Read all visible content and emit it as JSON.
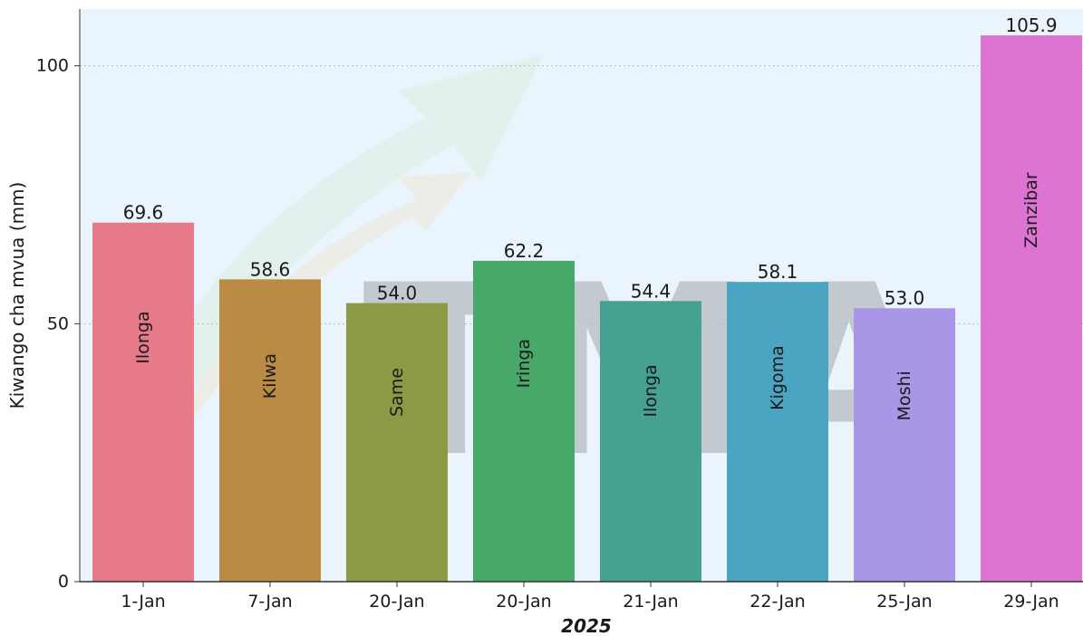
{
  "chart_data": {
    "type": "bar",
    "categories": [
      "1-Jan",
      "7-Jan",
      "20-Jan",
      "20-Jan",
      "21-Jan",
      "22-Jan",
      "25-Jan",
      "29-Jan"
    ],
    "values": [
      69.6,
      58.6,
      54.0,
      62.2,
      54.4,
      58.1,
      53.0,
      105.9
    ],
    "value_labels": [
      "69.6",
      "58.6",
      "54.0",
      "62.2",
      "54.4",
      "58.1",
      "53.0",
      "105.9"
    ],
    "stations": [
      "Ilonga",
      "Kilwa",
      "Same",
      "Iringa",
      "Ilonga",
      "Kigoma",
      "Moshi",
      "Zanzibar"
    ],
    "bar_colors": [
      "#e67a89",
      "#bb8a45",
      "#8c9a43",
      "#47a86a",
      "#46a190",
      "#4ba4c2",
      "#a996e6",
      "#dd73d2"
    ],
    "xlabel": "2025",
    "ylabel": "Kiwango cha mvua (mm)",
    "yticks": [
      0,
      50,
      100
    ],
    "ylim": [
      0,
      111
    ],
    "grid": "horizontal dotted",
    "background_color": "#eaf4fc",
    "watermark": "TMA"
  }
}
